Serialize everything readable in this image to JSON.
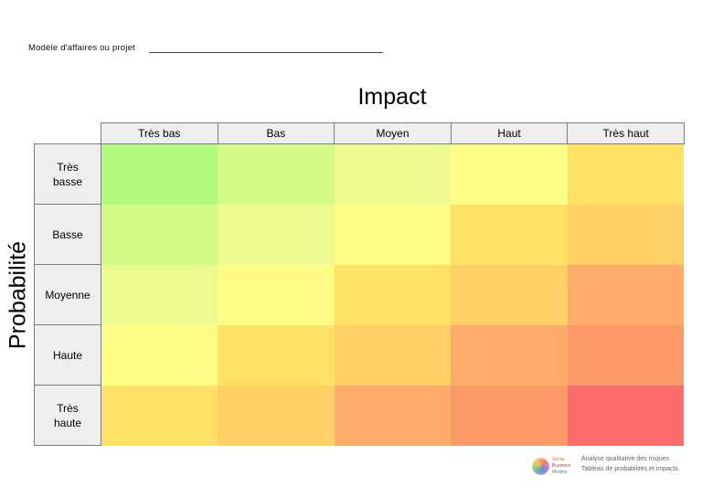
{
  "page": {
    "top_label": "Modèle d'affaires ou projet"
  },
  "chart_data": {
    "type": "heatmap",
    "title": "Impact",
    "xlabel": "Impact",
    "ylabel": "Probabilité",
    "x_categories": [
      "Très bas",
      "Bas",
      "Moyen",
      "Haut",
      "Très haut"
    ],
    "y_categories": [
      "Très basse",
      "Basse",
      "Moyenne",
      "Haute",
      "Très haute"
    ],
    "y_categories_display": [
      "Très\nbasse",
      "Basse",
      "Moyenne",
      "Haute",
      "Très\nhaute"
    ],
    "legend": "none",
    "grid": "header-borders-only",
    "header_bg": "#eeeeee",
    "header_border": "#7f7f7f",
    "cell_colors": [
      [
        "#b1fa7d",
        "#d4fa88",
        "#ecfa90",
        "#fdfc85",
        "#ffe165"
      ],
      [
        "#d4fa88",
        "#ecfa90",
        "#fdfc85",
        "#ffe165",
        "#ffd066"
      ],
      [
        "#ecfa90",
        "#fdfc85",
        "#ffe165",
        "#ffd066",
        "#feab6c"
      ],
      [
        "#fdfc85",
        "#ffe165",
        "#ffd066",
        "#feab6c",
        "#fc9968"
      ],
      [
        "#ffe165",
        "#ffd066",
        "#feab6c",
        "#fc9968",
        "#fb6d6d"
      ]
    ],
    "color_scale_low_to_high": [
      "#b1fa7d",
      "#d4fa88",
      "#ecfa90",
      "#fdfc85",
      "#ffe165",
      "#ffd066",
      "#feab6c",
      "#fc9968",
      "#fb6d6d"
    ]
  },
  "footer": {
    "logo_lines": [
      "Social",
      "Business",
      "Models"
    ],
    "caption_line1": "Analyse qualitative des risques",
    "caption_line2": "Tableau de probabilités et impacts"
  }
}
